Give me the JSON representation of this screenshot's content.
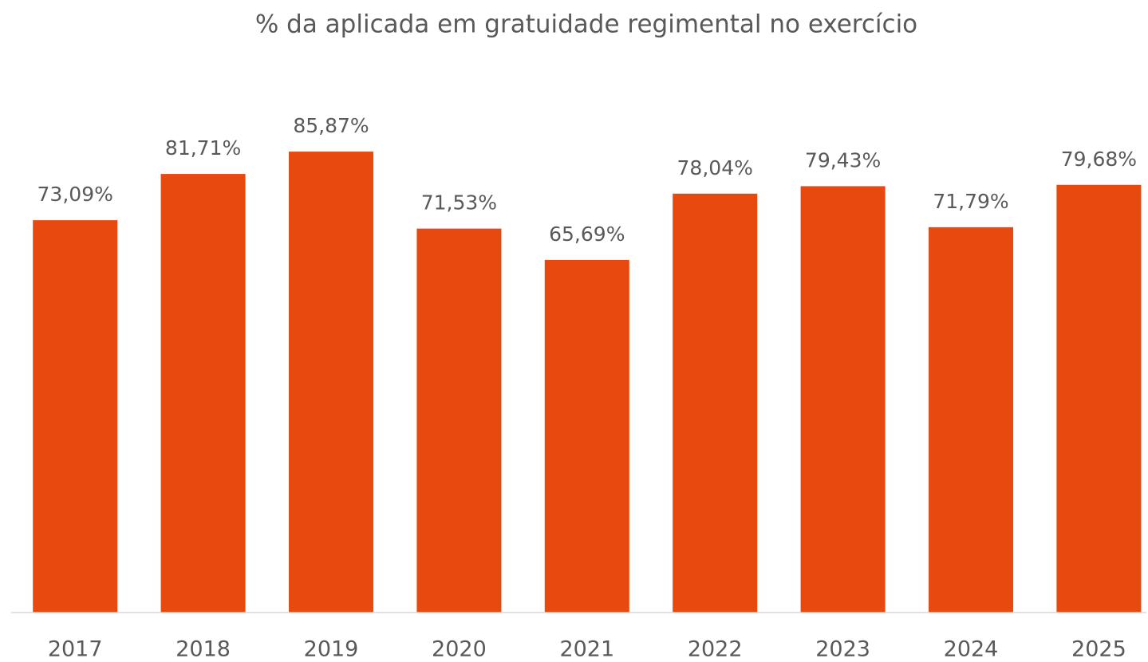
{
  "chart_data": {
    "type": "bar",
    "title": "% da aplicada em gratuidade regimental no exercício",
    "categories": [
      "2017",
      "2018",
      "2019",
      "2020",
      "2021",
      "2022",
      "2023",
      "2024",
      "2025"
    ],
    "values": [
      73.09,
      81.71,
      85.87,
      71.53,
      65.69,
      78.04,
      79.43,
      71.79,
      79.68
    ],
    "value_labels": [
      "73,09%",
      "81,71%",
      "85,87%",
      "71,53%",
      "65,69%",
      "78,04%",
      "79,43%",
      "71,79%",
      "79,68%"
    ],
    "color": "#e8490f",
    "ylim": [
      0,
      100
    ]
  }
}
